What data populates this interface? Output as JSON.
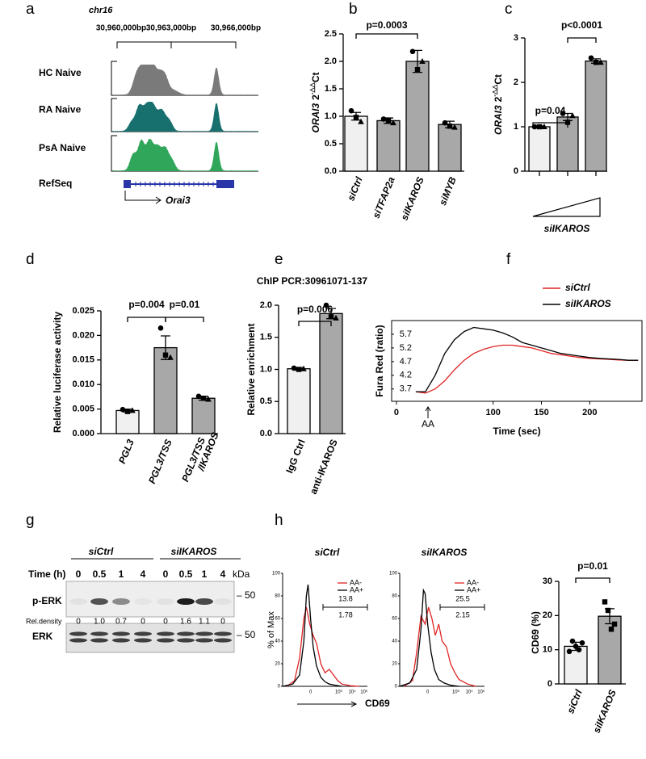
{
  "panel_labels": [
    "a",
    "b",
    "c",
    "d",
    "e",
    "f",
    "g",
    "h"
  ],
  "genome": {
    "chromosome": "chr16",
    "coordinates": [
      "30,960,000bp",
      "30,963,000bp",
      "30,966,000bp"
    ],
    "tracks": [
      "HC Naive",
      "RA Naive",
      "PsA Naive"
    ],
    "refseq": "RefSeq",
    "gene": "Orai3"
  },
  "chart_data": [
    {
      "type": "bar",
      "ylabel": [
        "ORAI3",
        "2",
        "-△△",
        "Ct"
      ],
      "categories": [
        "siCtrl",
        "siTFAP2a",
        "siIKAROS",
        "siMYB"
      ],
      "values": [
        1.0,
        0.92,
        2.0,
        0.85
      ],
      "errors": [
        0.07,
        0.05,
        0.2,
        0.06
      ],
      "points": [
        [
          1.1,
          0.98,
          0.9
        ],
        [
          0.95,
          0.92,
          0.88
        ],
        [
          2.18,
          1.85,
          2.0
        ],
        [
          0.88,
          0.82,
          0.8
        ]
      ],
      "colors": [
        "#f0f0f0",
        "#a8a8a8",
        "#a8a8a8",
        "#a8a8a8"
      ],
      "ylim": [
        0,
        2.5
      ],
      "yticks": [
        {
          "value": 0,
          "label": "0.0"
        },
        0.5,
        {
          "value": 1,
          "label": "1.0"
        },
        1.5,
        {
          "value": 2,
          "label": "2.0"
        },
        2.5
      ],
      "annotations": [
        "p=0.0003"
      ]
    },
    {
      "type": "bar",
      "ylabel": [
        "ORAI3",
        "2",
        "-△△",
        "Ct"
      ],
      "xlabel": "siIKAROS",
      "categories": [
        null,
        null,
        null
      ],
      "values": [
        1.0,
        1.22,
        2.48
      ],
      "errors": [
        0.02,
        0.08,
        0.05
      ],
      "points": [
        [
          1.0,
          1.0,
          1.0
        ],
        [
          1.3,
          1.1,
          1.25
        ],
        [
          2.55,
          2.45,
          2.45
        ]
      ],
      "colors": [
        "#f0f0f0",
        "#a8a8a8",
        "#a8a8a8"
      ],
      "ylim": [
        0,
        3
      ],
      "yticks": [
        0,
        1,
        2,
        3
      ],
      "annotations": [
        "p=0.04",
        "p<0.0001"
      ]
    },
    {
      "type": "bar",
      "ylabel": "Relative luciferase activity",
      "categories": [
        "PGL3",
        "PGL3/TSS",
        "PGL3/TSS\n/IKAROS"
      ],
      "values": [
        0.0047,
        0.0175,
        0.0072
      ],
      "errors": [
        0.0003,
        0.0024,
        0.0004
      ],
      "points": [
        [
          0.0049,
          0.0045,
          0.0047
        ],
        [
          0.0215,
          0.016,
          0.0155
        ],
        [
          0.0076,
          0.0072,
          0.007
        ]
      ],
      "colors": [
        "#f0f0f0",
        "#a8a8a8",
        "#a8a8a8"
      ],
      "ylim": [
        0,
        0.025
      ],
      "yticks": [
        {
          "value": 0,
          "label": "0.000"
        },
        0.005,
        {
          "value": 0.01,
          "label": "0.010"
        },
        0.015,
        {
          "value": 0.02,
          "label": "0.020"
        },
        0.025
      ],
      "annotations": [
        "p=0.004",
        "p=0.01"
      ]
    },
    {
      "type": "bar",
      "title": "ChIP PCR:30961071-137",
      "ylabel": "Relative enrichment",
      "categories": [
        "IgG Ctrl",
        "anti-IKAROS"
      ],
      "values": [
        1.01,
        1.87
      ],
      "errors": [
        0.02,
        0.08
      ],
      "points": [
        [
          1.02,
          1.0,
          1.01
        ],
        [
          2.0,
          1.82,
          1.8
        ]
      ],
      "colors": [
        "#f0f0f0",
        "#a8a8a8"
      ],
      "ylim": [
        0,
        2.0
      ],
      "yticks": [
        {
          "value": 0,
          "label": "0.0"
        },
        0.5,
        {
          "value": 1,
          "label": "1.0"
        },
        1.5,
        {
          "value": 2,
          "label": "2.0"
        }
      ],
      "annotations": [
        "p=0.006"
      ]
    },
    {
      "type": "line",
      "xlabel": "Time (sec)",
      "ylabel": "Fura Red (ratio)",
      "annotation": "AA",
      "x": [
        20,
        30,
        40,
        50,
        60,
        70,
        80,
        90,
        100,
        110,
        120,
        130,
        140,
        150,
        160,
        170,
        180,
        190,
        200,
        210,
        220,
        230,
        240,
        250
      ],
      "series": [
        {
          "name": "siCtrl",
          "color": "#e02424",
          "values": [
            3.6,
            3.55,
            3.7,
            4.0,
            4.4,
            4.75,
            5.0,
            5.15,
            5.25,
            5.3,
            5.3,
            5.25,
            5.2,
            5.1,
            5.0,
            4.95,
            4.9,
            4.85,
            4.82,
            4.8,
            4.78,
            4.76,
            4.75,
            4.75
          ]
        },
        {
          "name": "siIKAROS",
          "color": "#000000",
          "values": [
            3.6,
            3.6,
            4.2,
            5.0,
            5.5,
            5.8,
            5.95,
            5.9,
            5.85,
            5.75,
            5.6,
            5.4,
            5.3,
            5.2,
            5.1,
            5.0,
            4.95,
            4.9,
            4.85,
            4.82,
            4.8,
            4.78,
            4.75,
            4.75
          ]
        }
      ],
      "xlim": [
        -5,
        254
      ],
      "ylim": [
        3.25,
        6.2
      ],
      "xticks": [
        0,
        100,
        150,
        200
      ],
      "yticks": [
        3.7,
        4.2,
        4.7,
        5.2,
        5.7
      ]
    },
    {
      "type": "bar",
      "ylabel": "CD69 (%)",
      "categories": [
        "siCtrl",
        "siIKAROS"
      ],
      "values": [
        11,
        19.8
      ],
      "errors": [
        1.2,
        2.2
      ],
      "points": [
        [
          9.5,
          12.5,
          11,
          10,
          12
        ],
        [
          24,
          21.5,
          16,
          17.5
        ]
      ],
      "colors": [
        "#f0f0f0",
        "#a8a8a8"
      ],
      "ylim": [
        0,
        30
      ],
      "yticks": [
        0,
        10,
        20,
        30
      ],
      "annotations": [
        "p=0.01"
      ]
    }
  ],
  "blot": {
    "groups": [
      "siCtrl",
      "siIKAROS"
    ],
    "time_label": "Time (h)",
    "times": [
      "0",
      "0.5",
      "1",
      "4",
      "0",
      "0.5",
      "1",
      "4"
    ],
    "unit": "kDa",
    "rows": [
      "p-ERK",
      "ERK"
    ],
    "markers": [
      "– 50",
      "– 50"
    ],
    "density_label": "Rel.density",
    "densities": [
      "0",
      "1.0",
      "0.7",
      "0",
      "0",
      "1.6",
      "1.1",
      "0"
    ]
  },
  "flow": {
    "panels": [
      {
        "title": "siCtrl",
        "gate": [
          "13.8",
          "1.78"
        ]
      },
      {
        "title": "siIKAROS",
        "gate": [
          "25.5",
          "2.15"
        ]
      }
    ],
    "legend": [
      "AA-",
      "AA+"
    ],
    "ylabel": "% of Max",
    "yticks": [
      0,
      20,
      40,
      60,
      80,
      100
    ],
    "xticks": [
      "0",
      "10³",
      "10⁴",
      "10⁵"
    ],
    "xlabel": "CD69"
  }
}
